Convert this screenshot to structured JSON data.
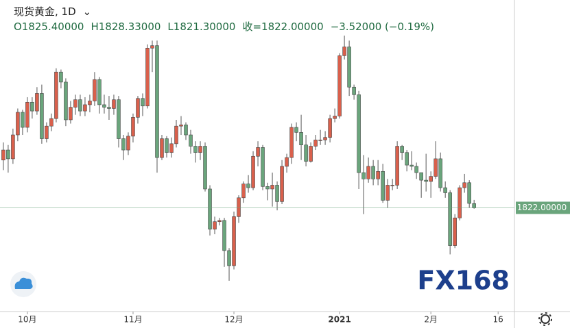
{
  "chart_data": {
    "type": "candlestick",
    "title": "现货黄金, 1D",
    "ohlc_labels": [
      "O1825.40000",
      "H1828.33000",
      "L1821.30000",
      "收=1822.00000",
      "−3.52000 (−0.19%)"
    ],
    "last_price": {
      "value": 1822,
      "label": "1822.00000"
    },
    "watermark": "FX168",
    "up_color": "#d9604c",
    "down_color": "#6aa57c",
    "ylim": [
      1739.5,
      1987.3
    ],
    "xlim": [
      -0.7,
      106.4
    ],
    "xticks": [
      {
        "value": 5,
        "label": "10月"
      },
      {
        "value": 27,
        "label": "11月"
      },
      {
        "value": 48,
        "label": "12月"
      },
      {
        "value": 70,
        "label": "2021"
      },
      {
        "value": 89,
        "label": "2月"
      },
      {
        "value": 103,
        "label": "16"
      }
    ],
    "open": [
      1860,
      1868,
      1861,
      1880,
      1898,
      1886,
      1906,
      1899,
      1913,
      1877,
      1887,
      1893,
      1930,
      1922,
      1892,
      1902,
      1908,
      1899,
      1904,
      1907,
      1924,
      1904,
      1902,
      1901,
      1908,
      1877,
      1868,
      1879,
      1894,
      1909,
      1903,
      1949,
      1951,
      1862,
      1877,
      1866,
      1873,
      1887,
      1888,
      1880,
      1871,
      1866,
      1871,
      1837,
      1805,
      1811,
      1812,
      1788,
      1776,
      1815,
      1830,
      1841,
      1838,
      1863,
      1870,
      1839,
      1837,
      1840,
      1827,
      1855,
      1862,
      1886,
      1882,
      1872,
      1859,
      1871,
      1876,
      1876,
      1878,
      1893,
      1895,
      1943,
      1950,
      1918,
      1912,
      1850,
      1845,
      1855,
      1845,
      1851,
      1828,
      1840,
      1840,
      1871,
      1866,
      1856,
      1855,
      1850,
      1844,
      1843,
      1847,
      1861,
      1838,
      1834,
      1792,
      1814,
      1838,
      1842,
      1825.4
    ],
    "high": [
      1874,
      1872,
      1885,
      1901,
      1900,
      1910,
      1910,
      1918,
      1920,
      1890,
      1897,
      1933,
      1932,
      1925,
      1907,
      1912,
      1912,
      1910,
      1912,
      1930,
      1926,
      1912,
      1911,
      1912,
      1911,
      1880,
      1882,
      1897,
      1911,
      1913,
      1952,
      1955,
      1955,
      1880,
      1879,
      1878,
      1892,
      1895,
      1890,
      1884,
      1875,
      1875,
      1874,
      1840,
      1815,
      1814,
      1814,
      1790,
      1819,
      1832,
      1843,
      1848,
      1867,
      1875,
      1872,
      1842,
      1850,
      1843,
      1860,
      1865,
      1889,
      1890,
      1896,
      1880,
      1874,
      1880,
      1884,
      1883,
      1896,
      1901,
      1945,
      1959,
      1955,
      1920,
      1915,
      1864,
      1862,
      1860,
      1860,
      1857,
      1845,
      1845,
      1875,
      1872,
      1868,
      1867,
      1858,
      1850,
      1865,
      1851,
      1875,
      1866,
      1843,
      1836,
      1817,
      1840,
      1849,
      1844,
      1828.33
    ],
    "low": [
      1852,
      1850,
      1857,
      1875,
      1880,
      1882,
      1893,
      1896,
      1873,
      1874,
      1883,
      1890,
      1917,
      1887,
      1889,
      1896,
      1895,
      1895,
      1898,
      1903,
      1897,
      1897,
      1892,
      1896,
      1870,
      1860,
      1864,
      1874,
      1889,
      1895,
      1901,
      1930,
      1850,
      1860,
      1862,
      1862,
      1870,
      1880,
      1876,
      1865,
      1858,
      1860,
      1835,
      1800,
      1801,
      1808,
      1775,
      1764,
      1773,
      1810,
      1826,
      1834,
      1836,
      1855,
      1836,
      1828,
      1823,
      1820,
      1825,
      1850,
      1857,
      1875,
      1860,
      1855,
      1858,
      1868,
      1872,
      1872,
      1874,
      1890,
      1893,
      1940,
      1911,
      1908,
      1837,
      1817,
      1842,
      1840,
      1840,
      1826,
      1822,
      1836,
      1837,
      1860,
      1851,
      1852,
      1845,
      1830,
      1835,
      1830,
      1845,
      1835,
      1830,
      1785,
      1790,
      1812,
      1834,
      1822,
      1821.3
    ],
    "close": [
      1868,
      1861,
      1880,
      1898,
      1886,
      1906,
      1899,
      1913,
      1877,
      1887,
      1893,
      1930,
      1922,
      1892,
      1902,
      1908,
      1899,
      1904,
      1907,
      1924,
      1904,
      1902,
      1901,
      1908,
      1877,
      1868,
      1879,
      1894,
      1909,
      1903,
      1949,
      1951,
      1862,
      1877,
      1866,
      1873,
      1887,
      1888,
      1880,
      1871,
      1866,
      1871,
      1837,
      1805,
      1811,
      1812,
      1788,
      1776,
      1815,
      1830,
      1841,
      1838,
      1863,
      1870,
      1839,
      1837,
      1840,
      1827,
      1855,
      1862,
      1886,
      1882,
      1872,
      1859,
      1871,
      1876,
      1876,
      1878,
      1893,
      1895,
      1943,
      1950,
      1918,
      1912,
      1850,
      1845,
      1855,
      1845,
      1851,
      1828,
      1840,
      1840,
      1871,
      1866,
      1856,
      1855,
      1850,
      1844,
      1843,
      1847,
      1861,
      1838,
      1834,
      1792,
      1814,
      1838,
      1842,
      1825.52,
      1822
    ]
  }
}
